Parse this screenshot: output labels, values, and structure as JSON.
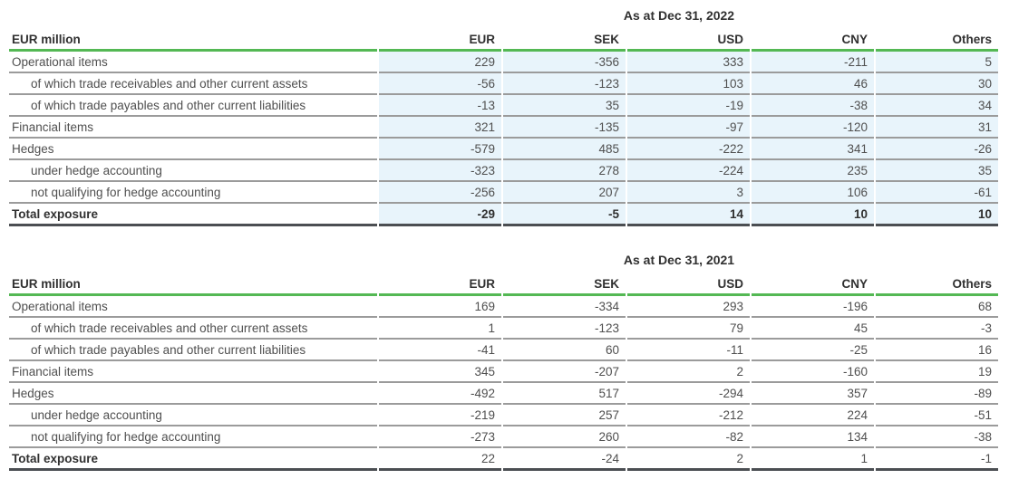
{
  "colors": {
    "header_rule_green": "#54b854",
    "row_separator_gray": "#9b9b9b",
    "total_rule_dark": "#4b4e52",
    "highlight_blue": "#e8f4fb",
    "text_regular": "#4f4f4f",
    "text_bold": "#303030"
  },
  "tables": [
    {
      "title": "As at Dec 31, 2022",
      "unit_label": "EUR million",
      "columns": [
        "EUR",
        "SEK",
        "USD",
        "CNY",
        "Others"
      ],
      "highlighted": true,
      "rows": [
        {
          "label": "Operational items",
          "indent": false,
          "total": false,
          "values": [
            "229",
            "-356",
            "333",
            "-211",
            "5"
          ]
        },
        {
          "label": "of which trade receivables and other current assets",
          "indent": true,
          "total": false,
          "values": [
            "-56",
            "-123",
            "103",
            "46",
            "30"
          ]
        },
        {
          "label": "of which trade payables and other current liabilities",
          "indent": true,
          "total": false,
          "values": [
            "-13",
            "35",
            "-19",
            "-38",
            "34"
          ]
        },
        {
          "label": "Financial items",
          "indent": false,
          "total": false,
          "values": [
            "321",
            "-135",
            "-97",
            "-120",
            "31"
          ]
        },
        {
          "label": "Hedges",
          "indent": false,
          "total": false,
          "values": [
            "-579",
            "485",
            "-222",
            "341",
            "-26"
          ]
        },
        {
          "label": "under hedge accounting",
          "indent": true,
          "total": false,
          "values": [
            "-323",
            "278",
            "-224",
            "235",
            "35"
          ]
        },
        {
          "label": "not qualifying for hedge accounting",
          "indent": true,
          "total": false,
          "values": [
            "-256",
            "207",
            "3",
            "106",
            "-61"
          ]
        },
        {
          "label": "Total exposure",
          "indent": false,
          "total": true,
          "bold_values": true,
          "values": [
            "-29",
            "-5",
            "14",
            "10",
            "10"
          ]
        }
      ]
    },
    {
      "title": "As at Dec 31, 2021",
      "unit_label": "EUR million",
      "columns": [
        "EUR",
        "SEK",
        "USD",
        "CNY",
        "Others"
      ],
      "highlighted": false,
      "rows": [
        {
          "label": "Operational items",
          "indent": false,
          "total": false,
          "values": [
            "169",
            "-334",
            "293",
            "-196",
            "68"
          ]
        },
        {
          "label": "of which trade receivables and other current assets",
          "indent": true,
          "total": false,
          "values": [
            "1",
            "-123",
            "79",
            "45",
            "-3"
          ]
        },
        {
          "label": "of which trade payables and other current liabilities",
          "indent": true,
          "total": false,
          "values": [
            "-41",
            "60",
            "-11",
            "-25",
            "16"
          ]
        },
        {
          "label": "Financial items",
          "indent": false,
          "total": false,
          "values": [
            "345",
            "-207",
            "2",
            "-160",
            "19"
          ]
        },
        {
          "label": "Hedges",
          "indent": false,
          "total": false,
          "values": [
            "-492",
            "517",
            "-294",
            "357",
            "-89"
          ]
        },
        {
          "label": "under hedge accounting",
          "indent": true,
          "total": false,
          "values": [
            "-219",
            "257",
            "-212",
            "224",
            "-51"
          ]
        },
        {
          "label": "not qualifying for hedge accounting",
          "indent": true,
          "total": false,
          "values": [
            "-273",
            "260",
            "-82",
            "134",
            "-38"
          ]
        },
        {
          "label": "Total exposure",
          "indent": false,
          "total": true,
          "bold_values": false,
          "values": [
            "22",
            "-24",
            "2",
            "1",
            "-1"
          ]
        }
      ]
    }
  ]
}
